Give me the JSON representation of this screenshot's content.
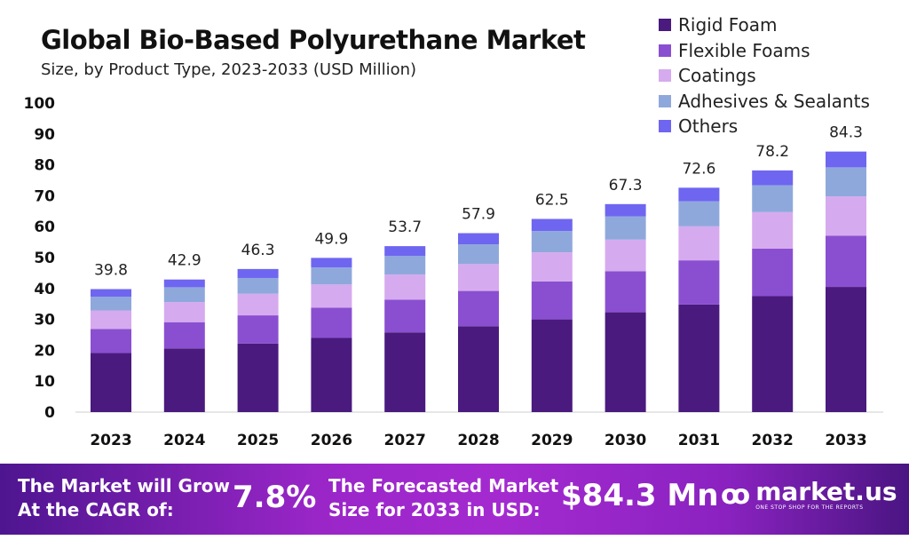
{
  "chart_data": {
    "type": "bar",
    "stacked": true,
    "title": "Global Bio-Based Polyurethane Market",
    "subtitle": "Size, by Product Type, 2023-2033 (USD Million)",
    "xlabel": "",
    "ylabel": "",
    "ylim": [
      0,
      100
    ],
    "yticks": [
      0,
      10,
      20,
      30,
      40,
      50,
      60,
      70,
      80,
      90,
      100
    ],
    "grid": false,
    "legend_position": "top-right",
    "categories": [
      "2023",
      "2024",
      "2025",
      "2026",
      "2027",
      "2028",
      "2029",
      "2030",
      "2031",
      "2032",
      "2033"
    ],
    "totals": [
      39.8,
      42.9,
      46.3,
      49.9,
      53.7,
      57.9,
      62.5,
      67.3,
      72.6,
      78.2,
      84.3
    ],
    "total_labels": [
      "39.8",
      "42.9",
      "46.3",
      "49.9",
      "53.7",
      "57.9",
      "62.5",
      "67.3",
      "72.6",
      "78.2",
      "84.3"
    ],
    "series": [
      {
        "name": "Rigid Foam",
        "color": "#4a1a7e",
        "values": [
          19.1,
          20.6,
          22.2,
          24.0,
          25.8,
          27.8,
          30.0,
          32.3,
          34.8,
          37.5,
          40.5
        ]
      },
      {
        "name": "Flexible Foams",
        "color": "#8a4fd0",
        "values": [
          7.8,
          8.5,
          9.1,
          9.8,
          10.6,
          11.4,
          12.3,
          13.3,
          14.3,
          15.4,
          16.6
        ]
      },
      {
        "name": "Coatings",
        "color": "#d6aaee",
        "values": [
          6.0,
          6.5,
          7.0,
          7.5,
          8.1,
          8.7,
          9.4,
          10.2,
          11.0,
          11.8,
          12.7
        ]
      },
      {
        "name": "Adhesives & Sealants",
        "color": "#8fa8dc",
        "values": [
          4.4,
          4.8,
          5.1,
          5.5,
          6.0,
          6.4,
          6.9,
          7.5,
          8.1,
          8.7,
          9.4
        ]
      },
      {
        "name": "Others",
        "color": "#6e66f0",
        "values": [
          2.5,
          2.5,
          2.9,
          3.1,
          3.2,
          3.6,
          3.9,
          4.0,
          4.4,
          4.8,
          5.1
        ]
      }
    ]
  },
  "banner": {
    "cagr_text_1": "The Market will Grow",
    "cagr_text_2": "At the CAGR of:",
    "cagr_value": "7.8%",
    "forecast_text_1": "The Forecasted Market",
    "forecast_text_2": "Size for 2033 in USD:",
    "forecast_value": "$84.3 Mn",
    "logo_name": "market.us",
    "logo_tagline": "ONE STOP SHOP FOR THE REPORTS"
  }
}
